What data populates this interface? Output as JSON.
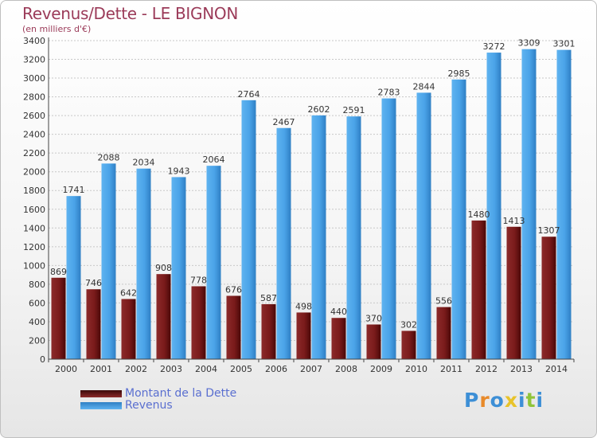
{
  "title": "Revenus/Dette - LE BIGNON",
  "subtitle": "(en milliers d'€)",
  "brand": {
    "text": "Proxiti",
    "colors": [
      "#3d8fd6",
      "#e88a2a",
      "#3d8fd6",
      "#e8c32a",
      "#3d8fd6",
      "#8fc43a",
      "#3d8fd6"
    ]
  },
  "chart_data": {
    "type": "bar",
    "categories": [
      "2000",
      "2001",
      "2002",
      "2003",
      "2004",
      "2005",
      "2006",
      "2007",
      "2008",
      "2009",
      "2010",
      "2011",
      "2012",
      "2013",
      "2014"
    ],
    "series": [
      {
        "name": "Montant de la Dette",
        "color": "#7a1b1b",
        "values": [
          869,
          746,
          642,
          908,
          778,
          676,
          587,
          498,
          440,
          370,
          302,
          556,
          1480,
          1413,
          1307
        ],
        "labels": [
          "869",
          "746",
          "642",
          "908",
          "778",
          "676",
          "587",
          "498",
          "440",
          "370",
          "302",
          "556",
          "1480",
          "1413",
          "1307"
        ]
      },
      {
        "name": "Revenus",
        "color": "#4aa3e8",
        "values": [
          1741,
          2088,
          2034,
          1943,
          2064,
          2764,
          2467,
          2602,
          2591,
          2783,
          2844,
          2985,
          3272,
          3309,
          3301
        ],
        "labels": [
          "1741",
          "2088",
          "2034",
          "1943",
          "2064",
          "2764",
          "2467",
          "2602",
          "2591",
          "2783",
          "2844",
          "2985",
          "3272",
          "3309",
          "3301"
        ]
      }
    ],
    "yticks": [
      "0",
      "200",
      "400",
      "600",
      "800",
      "1000",
      "1200",
      "1400",
      "1600",
      "1800",
      "2000",
      "2200",
      "2400",
      "2600",
      "2800",
      "3000",
      "3200",
      "3400"
    ],
    "ylim": [
      0,
      3400
    ],
    "grid": true,
    "legend": "bottom-left"
  }
}
